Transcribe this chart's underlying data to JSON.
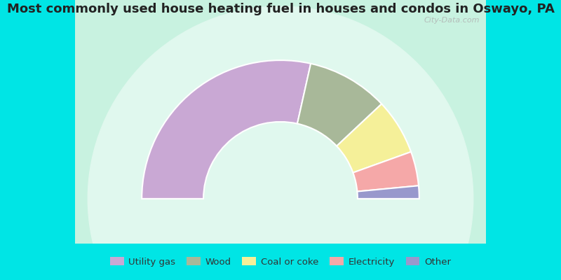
{
  "title": "Most commonly used house heating fuel in houses and condos in Oswayo, PA",
  "segments": [
    {
      "label": "Utility gas",
      "value": 57,
      "color": "#c9a8d4"
    },
    {
      "label": "Wood",
      "value": 19,
      "color": "#a8b899"
    },
    {
      "label": "Coal or coke",
      "value": 13,
      "color": "#f5f099"
    },
    {
      "label": "Electricity",
      "value": 8,
      "color": "#f5a8a8"
    },
    {
      "label": "Other",
      "value": 3,
      "color": "#9898cc"
    }
  ],
  "bg_color": "#00e5e5",
  "chart_bg": "#c8f2e0",
  "title_color": "#222222",
  "title_fontsize": 13,
  "legend_fontsize": 9.5,
  "watermark": "City-Data.com",
  "outer_r": 1.08,
  "inner_r": 0.6
}
